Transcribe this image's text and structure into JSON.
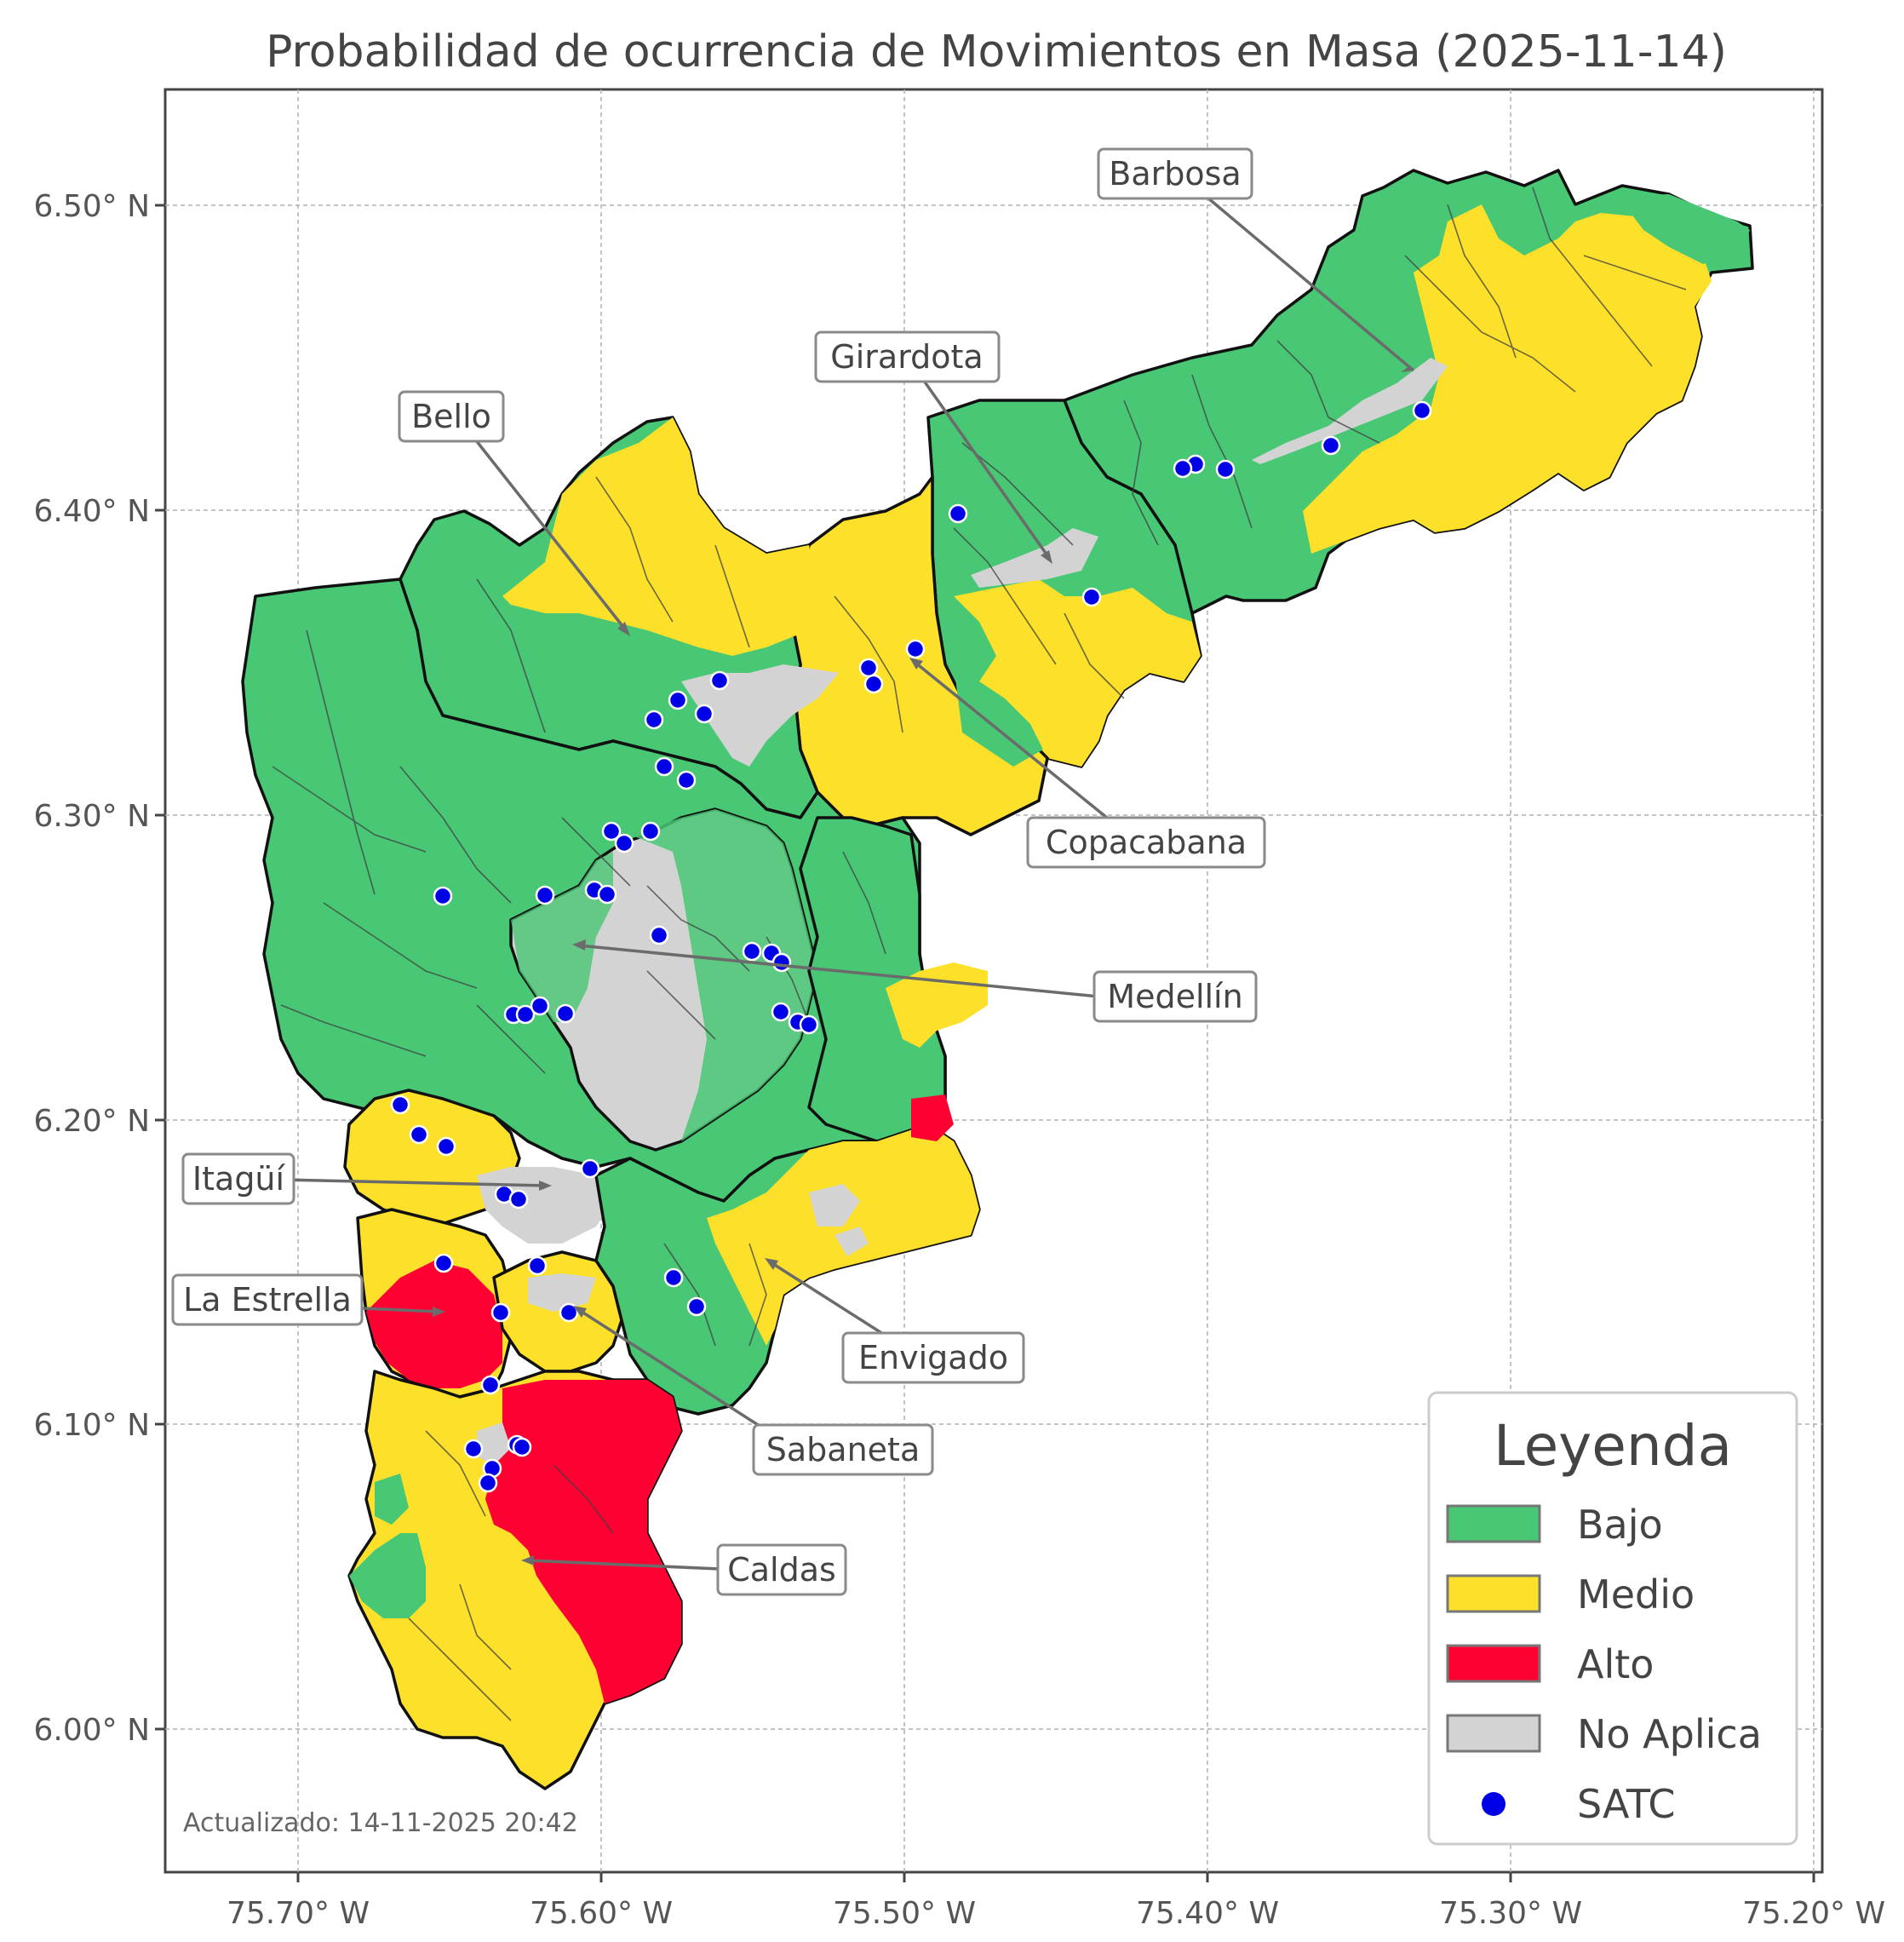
{
  "title": "Probabilidad de ocurrencia de Movimientos en Masa (2025-11-14)",
  "axes": {
    "x_ticks": [
      "75.70° W",
      "75.60° W",
      "75.50° W",
      "75.40° W",
      "75.30° W",
      "75.20° W"
    ],
    "y_ticks": [
      "6.50° N",
      "6.40° N",
      "6.30° N",
      "6.20° N",
      "6.10° N",
      "6.00° N"
    ]
  },
  "colors": {
    "bajo": "#48c774",
    "medio": "#fde02a",
    "alto": "#ff0033",
    "no_aplica": "#d3d3d3",
    "satc": "#0000e6"
  },
  "municipalities": [
    "Barbosa",
    "Girardota",
    "Bello",
    "Copacabana",
    "Medellín",
    "Itagüí",
    "La Estrella",
    "Envigado",
    "Sabaneta",
    "Caldas"
  ],
  "legend": {
    "title": "Leyenda",
    "items": [
      {
        "label": "Bajo",
        "color": "#48c774",
        "marker": "patch"
      },
      {
        "label": "Medio",
        "color": "#fde02a",
        "marker": "patch"
      },
      {
        "label": "Alto",
        "color": "#ff0033",
        "marker": "patch"
      },
      {
        "label": "No Aplica",
        "color": "#d3d3d3",
        "marker": "patch"
      },
      {
        "label": "SATC",
        "color": "#0000e6",
        "marker": "dot"
      }
    ]
  },
  "updated": "Actualizado: 14-11-2025 20:42"
}
